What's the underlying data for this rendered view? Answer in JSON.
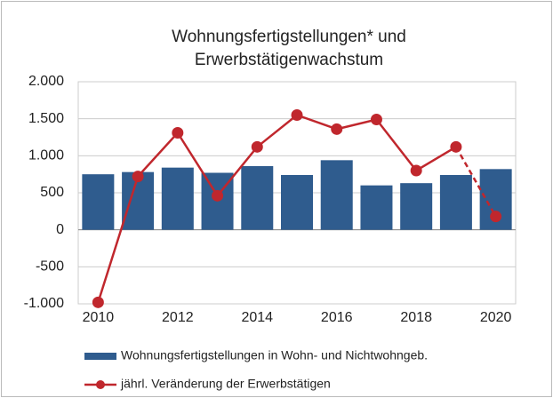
{
  "chart_data": {
    "type": "bar",
    "title": [
      "Wohnungsfertigstellungen* und",
      "Erwerbstätigenwachstum"
    ],
    "categories": [
      "2010",
      null,
      "2012",
      null,
      "2014",
      null,
      "2016",
      null,
      "2018",
      null,
      "2020"
    ],
    "series": [
      {
        "name": "Wohnungsfertigstellungen in Wohn- und Nichtwohngeb.",
        "type": "bar",
        "color": "#2f5c8e",
        "values": [
          750,
          780,
          840,
          770,
          860,
          740,
          940,
          600,
          630,
          740,
          820
        ]
      },
      {
        "name": "jährl. Veränderung der Erwerbstätigen",
        "type": "line",
        "color": "#c0272d",
        "dashed_last_segment": true,
        "values": [
          -980,
          720,
          1310,
          460,
          1120,
          1550,
          1360,
          1490,
          800,
          1120,
          180
        ]
      }
    ],
    "ylim": [
      -1000,
      2000
    ],
    "yticks": [
      {
        "value": -1000,
        "label": "-1.000"
      },
      -500,
      0,
      500,
      {
        "value": 1000,
        "label": "1.000"
      },
      {
        "value": 1500,
        "label": "1.500"
      },
      {
        "value": 2000,
        "label": "2.000"
      }
    ],
    "grid": true,
    "legend": "bottom"
  }
}
